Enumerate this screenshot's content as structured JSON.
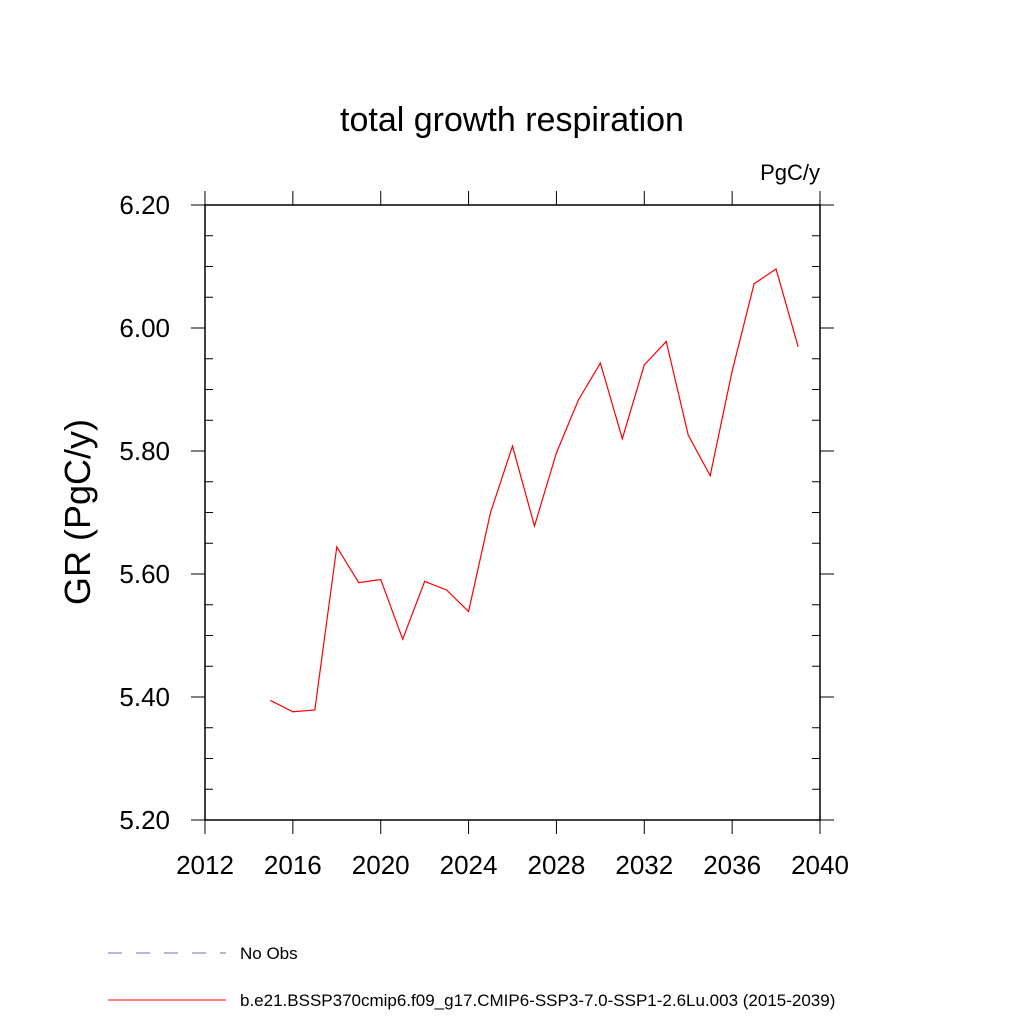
{
  "chart_data": {
    "type": "line",
    "title": "total growth respiration",
    "units": "PgC/y",
    "ylabel": "GR  (PgC/y)",
    "xlabel": "",
    "xlim": [
      2012,
      2040
    ],
    "ylim": [
      5.2,
      6.2
    ],
    "x_ticks": [
      2012,
      2016,
      2020,
      2024,
      2028,
      2032,
      2036,
      2040
    ],
    "x_tick_labels": [
      "2012",
      "2016",
      "2020",
      "2024",
      "2028",
      "2032",
      "2036",
      "2040"
    ],
    "y_ticks": [
      5.2,
      5.4,
      5.6,
      5.8,
      6.0,
      6.2
    ],
    "y_tick_labels": [
      "5.20",
      "5.40",
      "5.60",
      "5.80",
      "6.00",
      "6.20"
    ],
    "grid": false,
    "legend_position": "bottom",
    "legend": [
      {
        "label": "No Obs",
        "color": "#7a6fb3",
        "dash": "dashed"
      },
      {
        "label": "b.e21.BSSP370cmip6.f09_g17.CMIP6-SSP3-7.0-SSP1-2.6Lu.003 (2015-2039)",
        "color": "#ff0000",
        "dash": "solid"
      }
    ],
    "series": [
      {
        "name": "b.e21.BSSP370cmip6.f09_g17.CMIP6-SSP3-7.0-SSP1-2.6Lu.003 (2015-2039)",
        "color": "#ff0000",
        "x": [
          2015,
          2016,
          2017,
          2018,
          2019,
          2020,
          2021,
          2022,
          2023,
          2024,
          2025,
          2026,
          2027,
          2028,
          2029,
          2030,
          2031,
          2032,
          2033,
          2034,
          2035,
          2036,
          2037,
          2038,
          2039
        ],
        "y": [
          5.394,
          5.376,
          5.379,
          5.644,
          5.586,
          5.591,
          5.494,
          5.588,
          5.574,
          5.539,
          5.7,
          5.808,
          5.678,
          5.797,
          5.883,
          5.943,
          5.82,
          5.94,
          5.978,
          5.826,
          5.76,
          5.93,
          6.072,
          6.096,
          5.97
        ]
      }
    ]
  }
}
